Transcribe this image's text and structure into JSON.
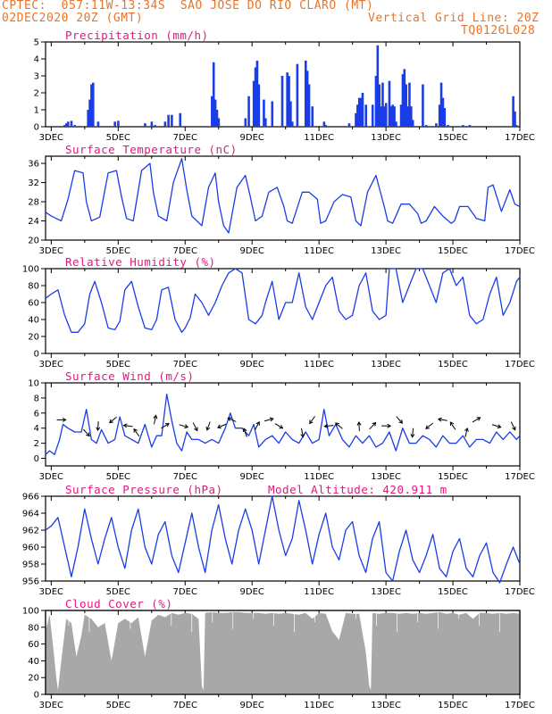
{
  "header": {
    "line1": "CPTEC:  057:11W-13:34S  SAO JOSE DO RIO CLARO (MT)",
    "line2": "02DEC2020 20Z (GMT)",
    "grid_note": "Vertical Grid Line: 20Z",
    "code": "TQ0126L028"
  },
  "colors": {
    "header": "#e8742a",
    "title": "#e0187e",
    "line": "#1a3de8",
    "bar": "#1a3de8",
    "cloud": "#a8a8a8"
  },
  "chart_data": [
    {
      "type": "bar",
      "title": "Precipitation (mm/h)",
      "ylim": [
        0,
        5
      ],
      "yticks": [
        0,
        1,
        2,
        3,
        4,
        5
      ],
      "xticks": [
        "3DEC",
        "5DEC",
        "7DEC",
        "9DEC",
        "11DEC",
        "13DEC",
        "15DEC",
        "17DEC"
      ],
      "x_range_days": [
        2.83,
        17.0
      ],
      "x": [
        3.4,
        3.45,
        3.5,
        3.6,
        3.7,
        4.1,
        4.15,
        4.2,
        4.25,
        4.4,
        4.9,
        5.0,
        5.8,
        6.0,
        6.1,
        6.4,
        6.5,
        6.6,
        6.85,
        7.8,
        7.85,
        7.9,
        7.95,
        8.0,
        8.8,
        8.9,
        9.05,
        9.1,
        9.15,
        9.2,
        9.35,
        9.4,
        9.6,
        9.9,
        10.05,
        10.1,
        10.15,
        10.2,
        10.35,
        10.6,
        10.65,
        10.7,
        10.8,
        11.15,
        11.2,
        11.9,
        12.1,
        12.15,
        12.2,
        12.25,
        12.3,
        12.4,
        12.6,
        12.7,
        12.75,
        12.8,
        12.85,
        12.9,
        12.95,
        13.0,
        13.1,
        13.15,
        13.2,
        13.25,
        13.3,
        13.45,
        13.5,
        13.55,
        13.6,
        13.65,
        13.7,
        13.75,
        13.8,
        14.1,
        14.2,
        14.5,
        14.6,
        14.65,
        14.7,
        14.75,
        14.85,
        15.3,
        15.5,
        16.8,
        16.85,
        16.9
      ],
      "values": [
        0.1,
        0.2,
        0.3,
        0.35,
        0.1,
        1.0,
        1.6,
        2.5,
        2.6,
        0.3,
        0.3,
        0.35,
        0.2,
        0.3,
        0.1,
        0.3,
        0.7,
        0.7,
        0.8,
        1.8,
        3.8,
        1.6,
        1.0,
        0.5,
        0.5,
        1.8,
        2.7,
        3.5,
        3.9,
        2.5,
        1.6,
        0.5,
        1.5,
        3.0,
        3.2,
        3.0,
        1.5,
        0.3,
        3.7,
        3.9,
        3.3,
        2.5,
        1.2,
        0.3,
        0.1,
        0.2,
        0.8,
        1.3,
        1.7,
        1.7,
        2.0,
        1.3,
        1.3,
        3.0,
        4.8,
        2.5,
        1.2,
        2.6,
        1.2,
        1.4,
        2.7,
        1.2,
        1.3,
        1.2,
        0.3,
        1.3,
        3.1,
        3.4,
        2.5,
        1.2,
        2.6,
        1.2,
        0.4,
        2.5,
        0.1,
        0.2,
        1.3,
        2.6,
        1.7,
        1.1,
        0.1,
        0.1,
        0.1,
        1.8,
        0.9,
        0.1
      ]
    },
    {
      "type": "line",
      "title": "Surface Temperature (nC)",
      "ylim": [
        20,
        37.5
      ],
      "yticks": [
        20,
        24,
        28,
        32,
        36
      ],
      "xticks": [
        "3DEC",
        "5DEC",
        "7DEC",
        "9DEC",
        "11DEC",
        "13DEC",
        "15DEC",
        "17DEC"
      ],
      "x": [
        2.83,
        3.0,
        3.15,
        3.3,
        3.5,
        3.7,
        3.95,
        4.05,
        4.2,
        4.45,
        4.7,
        4.95,
        5.1,
        5.25,
        5.45,
        5.7,
        5.95,
        6.05,
        6.2,
        6.45,
        6.65,
        6.9,
        7.05,
        7.2,
        7.5,
        7.7,
        7.9,
        8.0,
        8.15,
        8.3,
        8.55,
        8.8,
        8.95,
        9.1,
        9.3,
        9.5,
        9.75,
        9.95,
        10.05,
        10.2,
        10.5,
        10.7,
        10.95,
        11.05,
        11.2,
        11.45,
        11.7,
        11.95,
        12.1,
        12.25,
        12.45,
        12.7,
        12.95,
        13.05,
        13.2,
        13.45,
        13.7,
        13.95,
        14.05,
        14.2,
        14.45,
        14.7,
        14.95,
        15.05,
        15.2,
        15.45,
        15.7,
        15.95,
        16.05,
        16.2,
        16.45,
        16.7,
        16.85,
        17.0
      ],
      "values": [
        25.8,
        25.0,
        24.5,
        24.0,
        28.5,
        34.5,
        34.0,
        28.0,
        24.0,
        24.8,
        34.0,
        34.5,
        29.0,
        24.5,
        24.0,
        34.5,
        36.0,
        30.0,
        25.0,
        24.0,
        32.0,
        37.0,
        30.5,
        25.0,
        23.0,
        31.0,
        34.0,
        28.0,
        23.0,
        21.5,
        31.0,
        33.5,
        29.0,
        24.0,
        25.0,
        30.0,
        31.0,
        27.0,
        24.0,
        23.5,
        30.0,
        30.0,
        28.5,
        23.5,
        24.0,
        28.0,
        29.5,
        29.0,
        24.0,
        23.0,
        30.0,
        33.5,
        27.0,
        24.0,
        23.5,
        27.5,
        27.5,
        25.5,
        23.5,
        24.0,
        27.0,
        25.0,
        23.5,
        24.0,
        27.0,
        27.0,
        24.5,
        24.0,
        31.0,
        31.5,
        26.0,
        30.5,
        27.5,
        27.0
      ]
    },
    {
      "type": "line",
      "title": "Relative Humidity (%)",
      "ylim": [
        0,
        100
      ],
      "yticks": [
        0,
        20,
        40,
        60,
        80,
        100
      ],
      "xticks": [
        "3DEC",
        "5DEC",
        "7DEC",
        "9DEC",
        "11DEC",
        "13DEC",
        "15DEC",
        "17DEC"
      ],
      "x": [
        2.83,
        3.0,
        3.2,
        3.4,
        3.6,
        3.8,
        4.0,
        4.15,
        4.3,
        4.5,
        4.7,
        4.9,
        5.05,
        5.2,
        5.4,
        5.6,
        5.8,
        6.0,
        6.15,
        6.3,
        6.5,
        6.7,
        6.9,
        7.0,
        7.15,
        7.3,
        7.5,
        7.7,
        7.9,
        8.1,
        8.3,
        8.5,
        8.7,
        8.9,
        9.1,
        9.3,
        9.4,
        9.6,
        9.8,
        10.0,
        10.2,
        10.4,
        10.6,
        10.8,
        11.0,
        11.2,
        11.4,
        11.6,
        11.8,
        12.0,
        12.2,
        12.4,
        12.6,
        12.8,
        13.0,
        13.1,
        13.3,
        13.5,
        13.7,
        13.9,
        14.1,
        14.3,
        14.5,
        14.7,
        14.9,
        15.1,
        15.3,
        15.5,
        15.7,
        15.9,
        16.1,
        16.3,
        16.5,
        16.7,
        16.9,
        17.0
      ],
      "values": [
        65,
        70,
        75,
        45,
        25,
        25,
        35,
        70,
        85,
        60,
        30,
        28,
        38,
        75,
        85,
        55,
        30,
        28,
        40,
        75,
        78,
        40,
        25,
        30,
        42,
        70,
        60,
        45,
        60,
        80,
        95,
        100,
        95,
        40,
        35,
        45,
        60,
        85,
        40,
        60,
        60,
        95,
        55,
        40,
        60,
        80,
        90,
        50,
        40,
        45,
        80,
        95,
        50,
        40,
        45,
        100,
        100,
        60,
        80,
        100,
        100,
        80,
        60,
        95,
        100,
        80,
        90,
        45,
        35,
        40,
        70,
        90,
        45,
        60,
        85,
        90
      ]
    },
    {
      "type": "line",
      "title": "Surface Wind (m/s)",
      "ylim": [
        -1,
        10
      ],
      "yticks": [
        0,
        2,
        4,
        6,
        8,
        10
      ],
      "xticks": [
        "3DEC",
        "5DEC",
        "7DEC",
        "9DEC",
        "11DEC",
        "13DEC",
        "15DEC",
        "17DEC"
      ],
      "x": [
        2.83,
        2.95,
        3.1,
        3.25,
        3.35,
        3.5,
        3.7,
        3.9,
        4.05,
        4.2,
        4.35,
        4.5,
        4.7,
        4.9,
        5.05,
        5.2,
        5.4,
        5.6,
        5.8,
        6.0,
        6.15,
        6.3,
        6.45,
        6.6,
        6.75,
        6.9,
        7.05,
        7.2,
        7.4,
        7.6,
        7.8,
        8.0,
        8.2,
        8.35,
        8.5,
        8.7,
        8.9,
        9.05,
        9.2,
        9.4,
        9.6,
        9.8,
        10.0,
        10.2,
        10.4,
        10.6,
        10.8,
        11.0,
        11.15,
        11.3,
        11.5,
        11.7,
        11.9,
        12.1,
        12.3,
        12.5,
        12.7,
        12.9,
        13.1,
        13.3,
        13.5,
        13.7,
        13.9,
        14.1,
        14.3,
        14.5,
        14.7,
        14.9,
        15.1,
        15.3,
        15.5,
        15.7,
        15.9,
        16.1,
        16.3,
        16.5,
        16.7,
        16.9,
        17.0
      ],
      "values": [
        0.5,
        1.0,
        0.5,
        2.5,
        4.5,
        4.0,
        3.5,
        3.5,
        6.5,
        2.5,
        2.0,
        3.8,
        2.0,
        2.5,
        5.5,
        3.0,
        2.5,
        2.0,
        4.5,
        1.5,
        3.0,
        3.0,
        8.5,
        5.0,
        2.0,
        1.0,
        3.5,
        2.5,
        2.5,
        2.0,
        2.5,
        2.0,
        4.0,
        6.0,
        4.0,
        4.0,
        3.0,
        4.5,
        1.5,
        2.5,
        3.0,
        2.0,
        3.5,
        2.5,
        2.0,
        3.5,
        2.0,
        2.5,
        6.5,
        3.0,
        4.5,
        2.5,
        1.5,
        3.0,
        2.0,
        3.0,
        1.5,
        2.0,
        3.5,
        1.0,
        4.0,
        2.0,
        2.0,
        3.0,
        2.5,
        1.5,
        3.0,
        2.0,
        2.0,
        3.0,
        1.5,
        2.5,
        2.5,
        2.0,
        3.5,
        2.5,
        3.5,
        2.5,
        3.0
      ]
    },
    {
      "type": "line",
      "title": "Surface Pressure (hPa)",
      "subtitle": "Model Altitude: 420.911 m",
      "ylim": [
        956,
        966
      ],
      "yticks": [
        956,
        958,
        960,
        962,
        964,
        966
      ],
      "xticks": [
        "3DEC",
        "5DEC",
        "7DEC",
        "9DEC",
        "11DEC",
        "13DEC",
        "15DEC",
        "17DEC"
      ],
      "x": [
        2.83,
        3.0,
        3.2,
        3.4,
        3.6,
        3.8,
        4.0,
        4.2,
        4.4,
        4.6,
        4.8,
        5.0,
        5.2,
        5.4,
        5.6,
        5.8,
        6.0,
        6.2,
        6.4,
        6.6,
        6.8,
        7.0,
        7.2,
        7.4,
        7.6,
        7.8,
        8.0,
        8.2,
        8.4,
        8.6,
        8.8,
        9.0,
        9.2,
        9.4,
        9.6,
        9.8,
        10.0,
        10.2,
        10.4,
        10.6,
        10.8,
        11.0,
        11.2,
        11.4,
        11.6,
        11.8,
        12.0,
        12.2,
        12.4,
        12.6,
        12.8,
        13.0,
        13.2,
        13.4,
        13.6,
        13.8,
        14.0,
        14.2,
        14.4,
        14.6,
        14.8,
        15.0,
        15.2,
        15.4,
        15.6,
        15.8,
        16.0,
        16.2,
        16.4,
        16.6,
        16.8,
        17.0
      ],
      "values": [
        962,
        962.5,
        963.5,
        960,
        956.5,
        960,
        964.5,
        961,
        958,
        961,
        963.5,
        960,
        957.5,
        962,
        964.5,
        960,
        958,
        961.5,
        963,
        959,
        957,
        960.5,
        964,
        960,
        957,
        962,
        965,
        961,
        958,
        962,
        964.5,
        962,
        958,
        962,
        966,
        962,
        959,
        961,
        965.5,
        962,
        958,
        961.5,
        964,
        960,
        958.5,
        962,
        963,
        959,
        957,
        961,
        963,
        957,
        956,
        959.5,
        962,
        958.5,
        957,
        959,
        961.5,
        957.5,
        956.5,
        959.5,
        961,
        957.5,
        956.5,
        959,
        960.5,
        957,
        955.8,
        958,
        960,
        958
      ]
    },
    {
      "type": "area",
      "title": "Cloud Cover (%)",
      "ylim": [
        0,
        100
      ],
      "yticks": [
        0,
        20,
        40,
        60,
        80,
        100
      ],
      "xticks": [
        "3DEC",
        "5DEC",
        "7DEC",
        "9DEC",
        "11DEC",
        "13DEC",
        "15DEC",
        "17DEC"
      ],
      "x": [
        2.83,
        2.95,
        3.05,
        3.15,
        3.2,
        3.3,
        3.45,
        3.6,
        3.75,
        3.9,
        4.0,
        4.2,
        4.4,
        4.6,
        4.8,
        5.0,
        5.2,
        5.4,
        5.6,
        5.8,
        6.0,
        6.2,
        6.4,
        6.6,
        6.8,
        7.0,
        7.2,
        7.4,
        7.5,
        7.55,
        7.6,
        7.8,
        8.0,
        8.2,
        8.4,
        8.6,
        8.8,
        9.0,
        9.2,
        9.4,
        9.6,
        9.8,
        10.0,
        10.2,
        10.4,
        10.6,
        10.8,
        11.0,
        11.2,
        11.4,
        11.6,
        11.8,
        12.0,
        12.2,
        12.4,
        12.5,
        12.55,
        12.6,
        12.8,
        13.0,
        13.2,
        13.4,
        13.6,
        13.8,
        14.0,
        14.2,
        14.4,
        14.6,
        14.8,
        15.0,
        15.2,
        15.4,
        15.6,
        15.8,
        16.0,
        16.2,
        16.4,
        16.6,
        16.8,
        17.0
      ],
      "values": [
        75,
        95,
        60,
        20,
        5,
        40,
        90,
        85,
        45,
        70,
        95,
        90,
        80,
        85,
        40,
        85,
        90,
        85,
        92,
        45,
        88,
        95,
        92,
        97,
        95,
        97,
        96,
        90,
        10,
        5,
        97,
        98,
        97,
        97,
        98,
        98,
        97,
        97,
        97,
        96,
        97,
        96,
        97,
        96,
        95,
        97,
        90,
        97,
        96,
        75,
        65,
        97,
        96,
        96,
        50,
        10,
        5,
        97,
        96,
        97,
        97,
        96,
        97,
        96,
        97,
        96,
        97,
        98,
        96,
        97,
        95,
        97,
        90,
        97,
        97,
        96,
        97,
        96,
        97,
        96
      ]
    }
  ]
}
